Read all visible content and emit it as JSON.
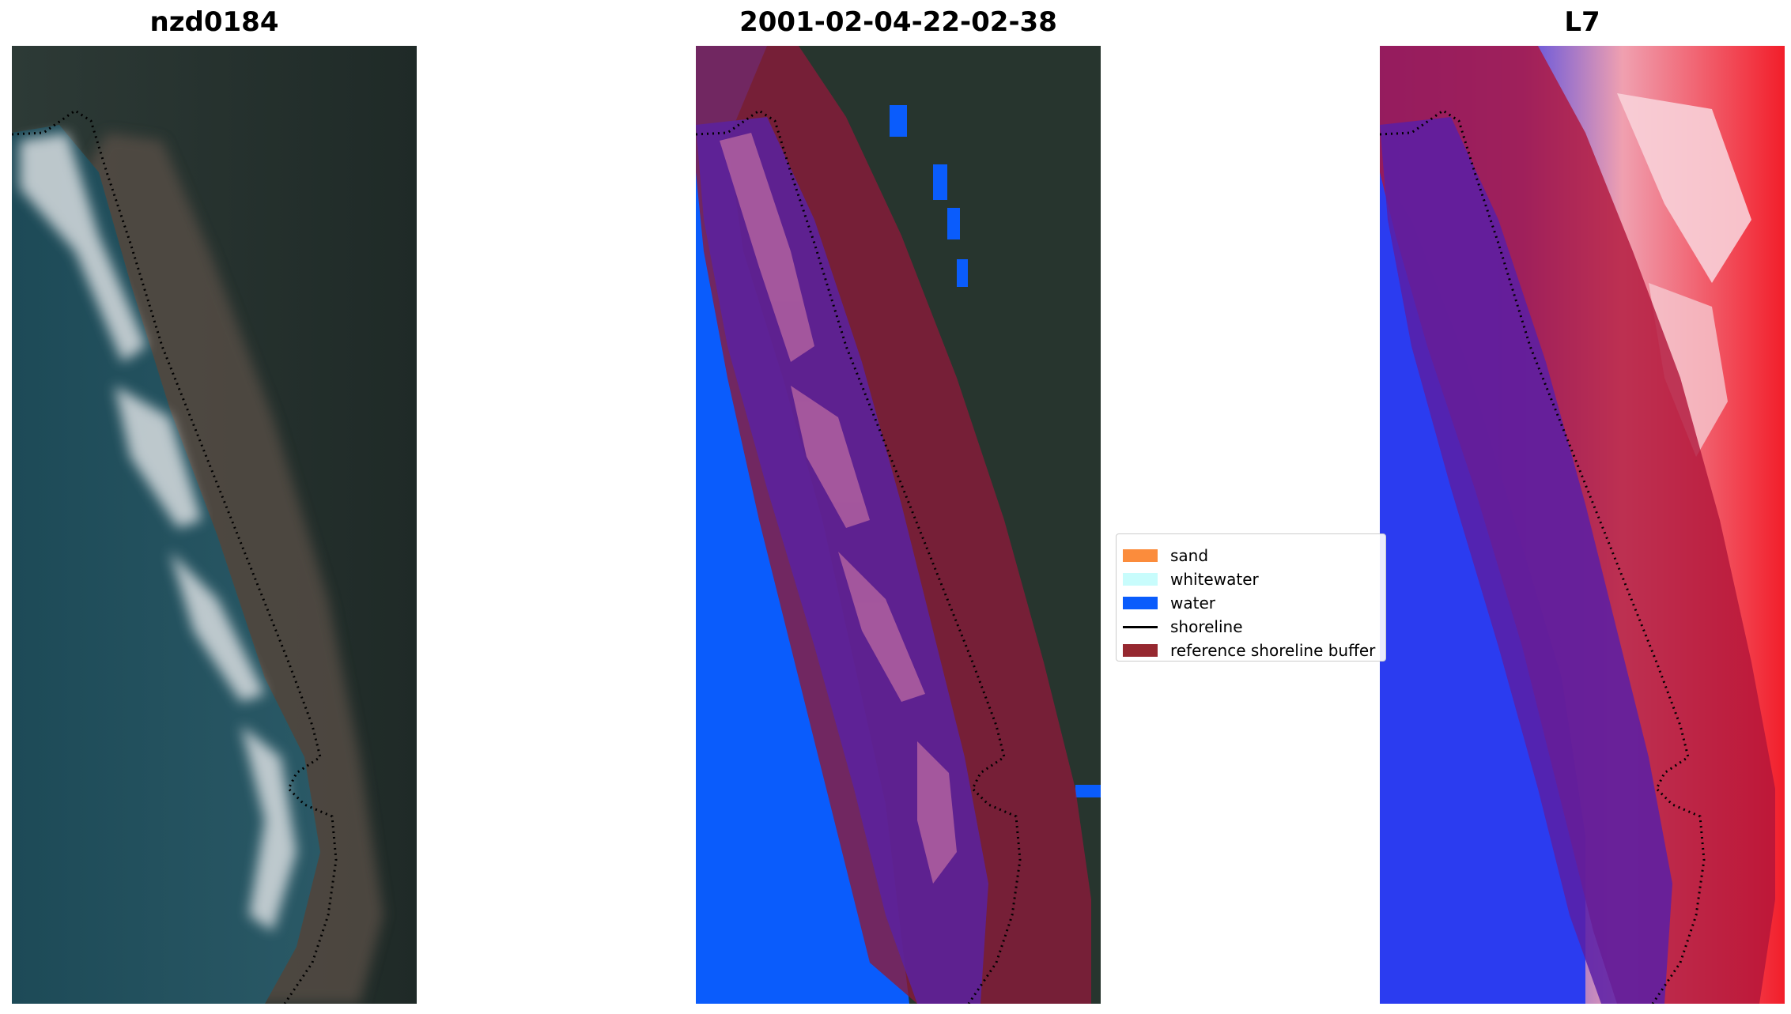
{
  "panels": [
    {
      "title": "nzd0184"
    },
    {
      "title": "2001-02-04-22-02-38"
    },
    {
      "title": "L7"
    }
  ],
  "legend": {
    "items": [
      {
        "label": "sand",
        "color": "#fb8c3c"
      },
      {
        "label": "whitewater",
        "color": "#c8fcfc"
      },
      {
        "label": "water",
        "color": "#0a5cfc"
      },
      {
        "label": "shoreline",
        "color": "#000000"
      },
      {
        "label": "reference shoreline buffer",
        "color": "#962830"
      }
    ]
  },
  "colors": {
    "rgb_water": "#1f4a55",
    "rgb_land": "#27352e",
    "class_water": "#0a5cfc",
    "buffer_overlay": "#8b1a3a",
    "index_blue": "#2b3cf0",
    "index_red": "#f21e2a"
  }
}
